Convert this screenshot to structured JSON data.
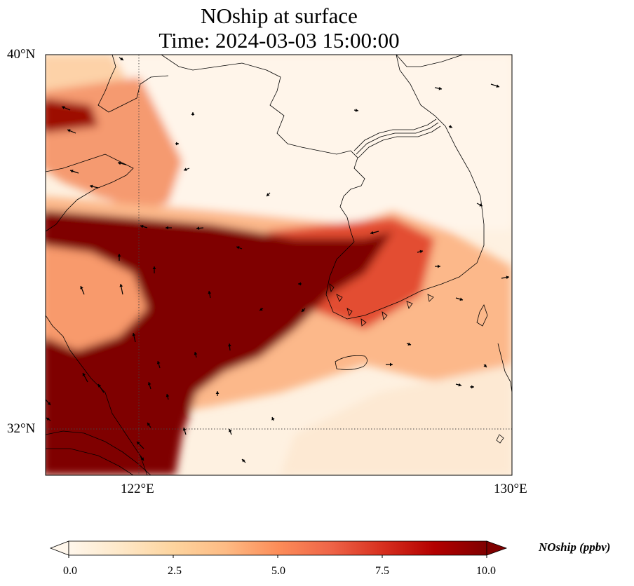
{
  "title": {
    "line1": "NOship at surface",
    "line2": "Time: 2024-03-03 15:00:00"
  },
  "axes": {
    "lat_ticks": [
      "40°N",
      "32°N"
    ],
    "lon_ticks": [
      "122°E",
      "130°E"
    ],
    "lat_range": [
      31,
      40
    ],
    "lon_range": [
      120,
      130
    ],
    "gridlines": "dotted"
  },
  "colorbar": {
    "label": "NOship (ppbv)",
    "ticks": [
      "0.0",
      "2.5",
      "5.0",
      "7.5",
      "10.0"
    ],
    "range": [
      0,
      10
    ],
    "extend": "both",
    "colormap": "OrRd",
    "colors": [
      "#fff7ec",
      "#fee8c8",
      "#fdd49e",
      "#fdbb84",
      "#fc8d59",
      "#ef6548",
      "#d7301f",
      "#b30000",
      "#7f0000"
    ]
  },
  "field": {
    "description_colors": {
      "high": "#7f0000",
      "low": "#fff7ec"
    }
  }
}
